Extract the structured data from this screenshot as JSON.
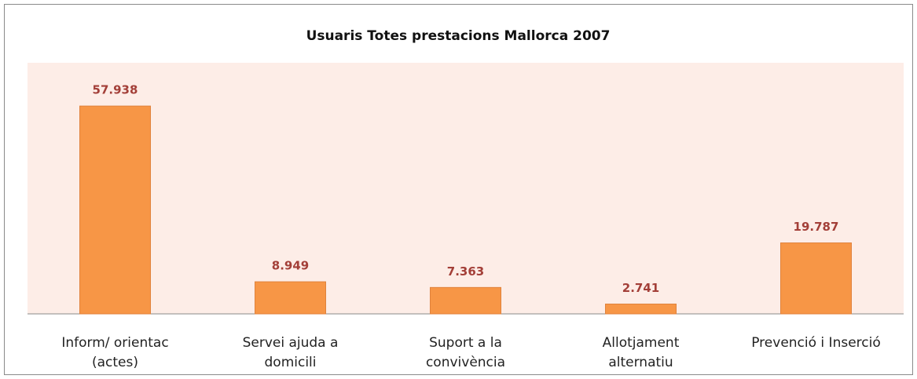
{
  "chart_data": {
    "type": "bar",
    "title": "Usuaris Totes prestacions Mallorca 2007",
    "categories": [
      [
        "Inform/ orientac",
        "(actes)"
      ],
      [
        "Servei ajuda a",
        "domicili"
      ],
      [
        "Suport a la",
        "convivència"
      ],
      [
        "Allotjament",
        "alternatiu"
      ],
      [
        "Prevenció i Inserció"
      ]
    ],
    "values": [
      57938,
      8949,
      7363,
      2741,
      19787
    ],
    "value_labels": [
      "57.938",
      "8.949",
      "7.363",
      "2.741",
      "19.787"
    ],
    "color": "#f79646",
    "ylim": [
      0,
      70000
    ]
  }
}
